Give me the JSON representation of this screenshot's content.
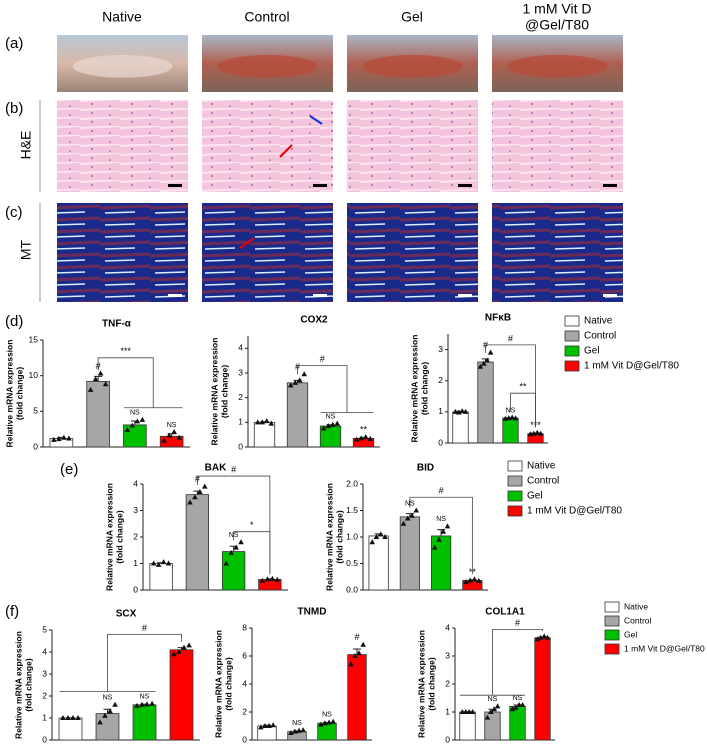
{
  "figure": {
    "columns": [
      "Native",
      "Control",
      "Gel",
      [
        "1 mM Vit D",
        "@Gel/T80"
      ]
    ],
    "panel_labels": [
      "(a)",
      "(b)",
      "(c)",
      "(d)",
      "(e)",
      "(f)"
    ],
    "row_labels": [
      "H&E",
      "MT"
    ],
    "legends": [
      {
        "names": [
          "Native",
          "Control",
          "Gel",
          "1 mM Vit D@Gel/T80"
        ],
        "colors": [
          "#ffffff",
          "#a6a6a6",
          "#00c000",
          "#ff0000"
        ]
      },
      {
        "names": [
          "Native",
          "Control",
          "Gel",
          "1 mM Vit D@Gel/T80"
        ],
        "colors": [
          "#ffffff",
          "#a6a6a6",
          "#00c000",
          "#ff0000"
        ]
      },
      {
        "names": [
          "Native",
          "Control",
          "Gel",
          "1 mM Vit D@Gel/T80"
        ],
        "colors": [
          "#ffffff",
          "#a6a6a6",
          "#00c000",
          "#ff0000"
        ]
      }
    ]
  },
  "chart_data": [
    {
      "type": "bar",
      "title": "TNF-α",
      "ylabel": [
        "Relative mRNA expression",
        "(fold change)"
      ],
      "values": [
        1.2,
        9.2,
        3.1,
        1.5
      ],
      "errors": [
        0.15,
        0.7,
        0.55,
        0.35
      ],
      "points": [
        [
          1.0,
          1.1,
          1.3,
          1.2
        ],
        [
          8.0,
          9.5,
          10.3,
          8.8
        ],
        [
          2.4,
          3.0,
          3.6,
          3.8
        ],
        [
          0.9,
          1.6,
          2.1,
          1.3
        ]
      ],
      "colors": [
        "#ffffff",
        "#a6a6a6",
        "#00c000",
        "#ff0000"
      ],
      "annotations": [
        null,
        "#",
        "NS",
        "NS"
      ],
      "brackets": [
        "***"
      ],
      "ylim": [
        0,
        15
      ],
      "yticks": [
        0,
        5,
        10,
        15
      ]
    },
    {
      "type": "bar",
      "title": "COX2",
      "ylabel": [
        "Relative mRNA expression",
        "(fold change)"
      ],
      "values": [
        1.0,
        2.6,
        0.85,
        0.35
      ],
      "errors": [
        0.03,
        0.1,
        0.05,
        0.03
      ],
      "points": [
        [
          1.0,
          1.0,
          1.05,
          0.95
        ],
        [
          2.5,
          2.6,
          2.7,
          2.95
        ],
        [
          0.75,
          0.85,
          0.9,
          0.95
        ],
        [
          0.3,
          0.35,
          0.4,
          0.33
        ]
      ],
      "colors": [
        "#ffffff",
        "#a6a6a6",
        "#00c000",
        "#ff0000"
      ],
      "annotations": [
        null,
        "#",
        "NS",
        "**"
      ],
      "brackets": [
        "#"
      ],
      "ylim": [
        0,
        4.5
      ],
      "yticks": [
        0,
        1,
        2,
        3,
        4
      ]
    },
    {
      "type": "bar",
      "title": "NFκB",
      "ylabel": [
        "Relative mRNA expression",
        "(fold change)"
      ],
      "values": [
        1.0,
        2.6,
        0.8,
        0.3
      ],
      "errors": [
        0.02,
        0.1,
        0.01,
        0.02
      ],
      "points": [
        [
          1.0,
          0.98,
          1.02,
          1.0
        ],
        [
          2.45,
          2.55,
          2.65,
          2.9
        ],
        [
          0.78,
          0.8,
          0.82,
          0.79
        ],
        [
          0.28,
          0.3,
          0.33,
          0.3
        ]
      ],
      "colors": [
        "#ffffff",
        "#a6a6a6",
        "#00c000",
        "#ff0000"
      ],
      "annotations": [
        null,
        "#",
        "NS",
        "***"
      ],
      "brackets": [
        "#",
        "**"
      ],
      "ylim": [
        0,
        3.5
      ],
      "yticks": [
        0,
        1,
        2,
        3
      ]
    },
    {
      "type": "bar",
      "title": "BAK",
      "ylabel": [
        "Relative mRNA expression",
        "(fold change)"
      ],
      "values": [
        1.0,
        3.6,
        1.45,
        0.4
      ],
      "errors": [
        0.03,
        0.13,
        0.2,
        0.02
      ],
      "points": [
        [
          1.0,
          0.95,
          1.05,
          1.0
        ],
        [
          3.3,
          3.5,
          3.7,
          3.9
        ],
        [
          1.0,
          1.4,
          1.6,
          1.8
        ],
        [
          0.35,
          0.4,
          0.42,
          0.38
        ]
      ],
      "colors": [
        "#ffffff",
        "#a6a6a6",
        "#00c000",
        "#ff0000"
      ],
      "annotations": [
        null,
        "#",
        "NS",
        null
      ],
      "brackets": [
        "#",
        "*"
      ],
      "ylim": [
        0,
        4
      ],
      "yticks": [
        0,
        1,
        2,
        3,
        4
      ]
    },
    {
      "type": "bar",
      "title": "BID",
      "ylabel": [
        "Relative mRNA expression",
        "(fold change)"
      ],
      "values": [
        1.02,
        1.38,
        1.02,
        0.18
      ],
      "errors": [
        0.04,
        0.06,
        0.12,
        0.01
      ],
      "points": [
        [
          0.9,
          1.0,
          1.05,
          1.0
        ],
        [
          1.25,
          1.35,
          1.4,
          1.5
        ],
        [
          0.8,
          0.95,
          1.1,
          1.2
        ],
        [
          0.15,
          0.18,
          0.2,
          0.17
        ]
      ],
      "colors": [
        "#ffffff",
        "#a6a6a6",
        "#00c000",
        "#ff0000"
      ],
      "annotations": [
        null,
        "NS",
        "NS",
        "**"
      ],
      "brackets": [
        "#"
      ],
      "ylim": [
        0,
        2
      ],
      "yticks": [
        {
          "value": 0,
          "label": "0.0"
        },
        {
          "value": 0.5,
          "label": "0.5"
        },
        {
          "value": 1,
          "label": "1.0"
        },
        {
          "value": 1.5,
          "label": "1.5"
        },
        {
          "value": 2,
          "label": "2.0"
        }
      ]
    },
    {
      "type": "bar",
      "title": "SCX",
      "ylabel": [
        "Relative mRNA expression",
        "(fold change)"
      ],
      "values": [
        1.0,
        1.2,
        1.6,
        4.1
      ],
      "errors": [
        0.01,
        0.2,
        0.03,
        0.1
      ],
      "points": [
        [
          1.0,
          1.0,
          1.0,
          1.0
        ],
        [
          0.8,
          1.1,
          1.3,
          1.6
        ],
        [
          1.55,
          1.6,
          1.62,
          1.65
        ],
        [
          3.9,
          4.0,
          4.2,
          4.3
        ]
      ],
      "colors": [
        "#ffffff",
        "#a6a6a6",
        "#00c000",
        "#ff0000"
      ],
      "annotations": [
        null,
        "NS",
        "NS",
        null
      ],
      "brackets": [
        "#"
      ],
      "ylim": [
        0,
        5
      ],
      "yticks": [
        0,
        1,
        2,
        3,
        4,
        5
      ]
    },
    {
      "type": "bar",
      "title": "TNMD",
      "ylabel": [
        "Relative mRNA expression",
        "(fold change)"
      ],
      "values": [
        1.0,
        0.6,
        1.2,
        6.1
      ],
      "errors": [
        0.05,
        0.05,
        0.05,
        0.4
      ],
      "points": [
        [
          0.9,
          1.0,
          1.0,
          1.05
        ],
        [
          0.5,
          0.6,
          0.65,
          0.7
        ],
        [
          1.1,
          1.2,
          1.25,
          1.3
        ],
        [
          5.4,
          6.0,
          6.2,
          6.8
        ]
      ],
      "colors": [
        "#ffffff",
        "#a6a6a6",
        "#00c000",
        "#ff0000"
      ],
      "annotations": [
        null,
        "NS",
        "NS",
        "#"
      ],
      "brackets": [],
      "ylim": [
        0,
        8
      ],
      "yticks": [
        0,
        2,
        4,
        6,
        8
      ]
    },
    {
      "type": "bar",
      "title": "COL1A1",
      "ylabel": [
        "Relative mRNA expression",
        "(fold change)"
      ],
      "values": [
        1.0,
        1.0,
        1.2,
        3.65
      ],
      "errors": [
        0.01,
        0.1,
        0.05,
        0.03
      ],
      "points": [
        [
          1.0,
          1.0,
          1.0,
          1.0
        ],
        [
          0.8,
          1.0,
          1.1,
          1.2
        ],
        [
          1.1,
          1.15,
          1.25,
          1.25
        ],
        [
          3.6,
          3.65,
          3.7,
          3.65
        ]
      ],
      "colors": [
        "#ffffff",
        "#a6a6a6",
        "#00c000",
        "#ff0000"
      ],
      "annotations": [
        null,
        "NS",
        "NS",
        null
      ],
      "brackets": [
        "#"
      ],
      "ylim": [
        0,
        4
      ],
      "yticks": [
        0,
        1,
        2,
        3,
        4
      ]
    }
  ]
}
